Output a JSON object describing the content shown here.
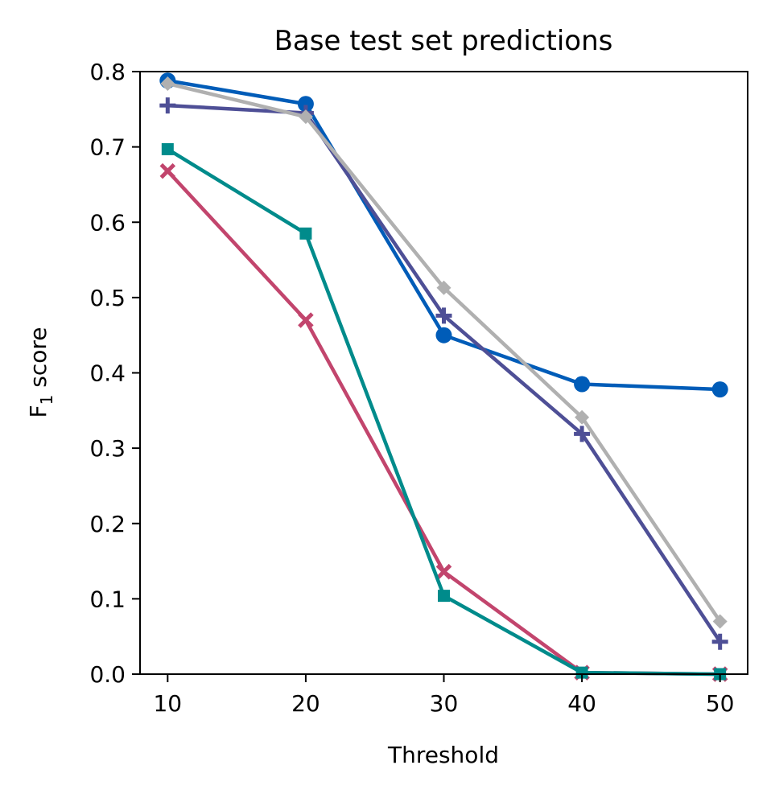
{
  "chart_data": {
    "type": "line",
    "title": "Base test set predictions",
    "xlabel": "Threshold",
    "ylabel_main": "F",
    "ylabel_sub": "1",
    "ylabel_rest": " score",
    "x": [
      10,
      20,
      30,
      40,
      50
    ],
    "xticks": [
      "10",
      "20",
      "30",
      "40",
      "50"
    ],
    "xlim": [
      8,
      52
    ],
    "yticks": [
      "0.0",
      "0.1",
      "0.2",
      "0.3",
      "0.4",
      "0.5",
      "0.6",
      "0.7",
      "0.8"
    ],
    "ylim": [
      0,
      0.8
    ],
    "grid": false,
    "series": [
      {
        "values": [
          0.668,
          0.47,
          0.136,
          0.002,
          0.0
        ],
        "color": "#c2456d",
        "marker": "x"
      },
      {
        "values": [
          0.697,
          0.585,
          0.104,
          0.002,
          0.0
        ],
        "color": "#008b8b",
        "marker": "square"
      },
      {
        "values": [
          0.788,
          0.757,
          0.45,
          0.385,
          0.378
        ],
        "color": "#005cb8",
        "marker": "circle"
      },
      {
        "values": [
          0.755,
          0.745,
          0.476,
          0.319,
          0.043
        ],
        "color": "#4e4f96",
        "marker": "plus"
      },
      {
        "values": [
          0.784,
          0.74,
          0.513,
          0.341,
          0.07
        ],
        "color": "#b0b0b0",
        "marker": "diamond"
      }
    ]
  }
}
